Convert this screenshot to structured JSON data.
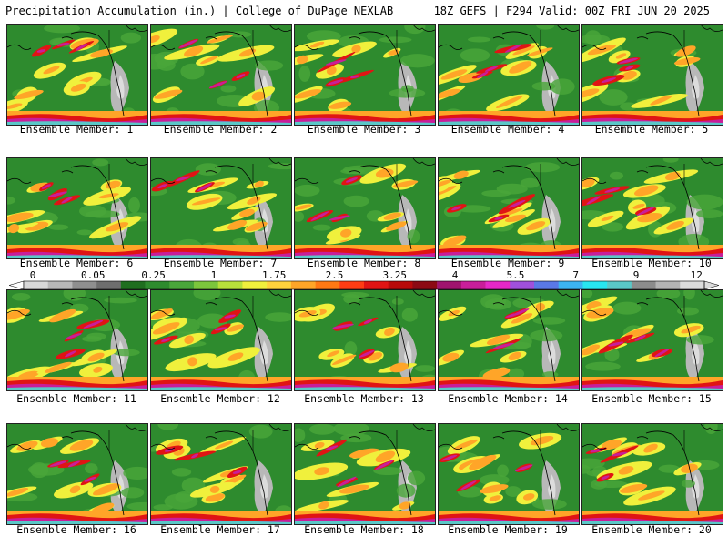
{
  "header": {
    "left_title": "Precipitation Accumulation (in.) | College of DuPage NEXLAB",
    "right_title": "18Z GEFS | F294 Valid: 00Z FRI JUN 20 2025"
  },
  "panels": [
    {
      "caption": "Ensemble Member: 1"
    },
    {
      "caption": "Ensemble Member: 2"
    },
    {
      "caption": "Ensemble Member: 3"
    },
    {
      "caption": "Ensemble Member: 4"
    },
    {
      "caption": "Ensemble Member: 5"
    },
    {
      "caption": "Ensemble Member: 6"
    },
    {
      "caption": "Ensemble Member: 7"
    },
    {
      "caption": "Ensemble Member: 8"
    },
    {
      "caption": "Ensemble Member: 9"
    },
    {
      "caption": "Ensemble Member: 10"
    },
    {
      "caption": "Ensemble Member: 11"
    },
    {
      "caption": "Ensemble Member: 12"
    },
    {
      "caption": "Ensemble Member: 13"
    },
    {
      "caption": "Ensemble Member: 14"
    },
    {
      "caption": "Ensemble Member: 15"
    },
    {
      "caption": "Ensemble Member: 16"
    },
    {
      "caption": "Ensemble Member: 17"
    },
    {
      "caption": "Ensemble Member: 18"
    },
    {
      "caption": "Ensemble Member: 19"
    },
    {
      "caption": "Ensemble Member: 20"
    }
  ],
  "colorbar": {
    "tick_labels": [
      "0",
      "0.05",
      "0.25",
      "1",
      "1.75",
      "2.5",
      "3.25",
      "4",
      "5.5",
      "7",
      "9",
      "12"
    ],
    "colors": [
      "#d8d8d8",
      "#b8b8b8",
      "#8f8f8f",
      "#6e6e6e",
      "#1f6e1f",
      "#2e8b2e",
      "#4aa63a",
      "#7cc63c",
      "#b8e03a",
      "#f0f03c",
      "#ffd23c",
      "#ffa528",
      "#ff7814",
      "#ff3c14",
      "#e01414",
      "#b80a0a",
      "#8c0a14",
      "#a0146e",
      "#c81e9a",
      "#e628c8",
      "#a050dc",
      "#5a78e6",
      "#3cb4f0",
      "#28e6f0",
      "#5ac8c8",
      "#8c8c8c",
      "#b4b4b4",
      "#dcdcdc"
    ]
  }
}
